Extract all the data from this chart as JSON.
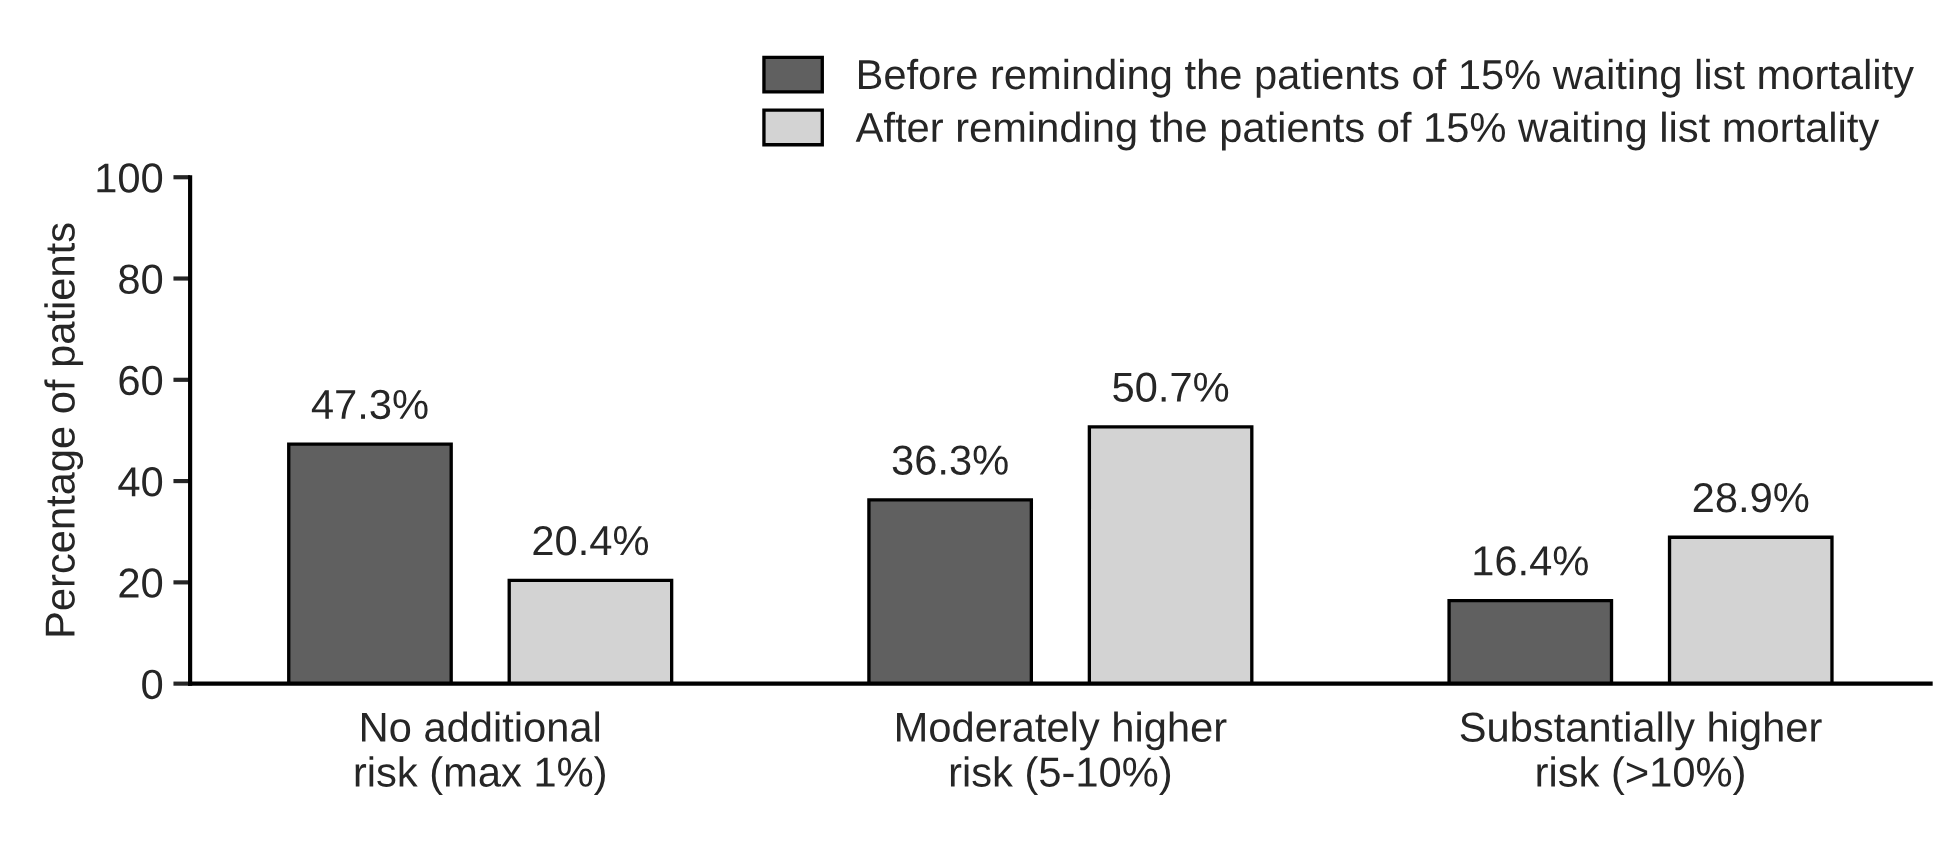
{
  "chart_data": {
    "type": "bar",
    "ylabel": "Percentage of patients",
    "categories": [
      "No additional\nrisk (max 1%)",
      "Moderately higher\nrisk (5-10%)",
      "Substantially higher\nrisk (>10%)"
    ],
    "series": [
      {
        "name": "Before reminding the patients of 15% waiting list mortality",
        "color": "#606060",
        "values": [
          47.3,
          36.3,
          16.4
        ],
        "value_labels": [
          "47.3%",
          "36.3%",
          "16.4%"
        ]
      },
      {
        "name": "After reminding the patients of 15% waiting list mortality",
        "color": "#d3d3d3",
        "values": [
          20.4,
          50.7,
          28.9
        ],
        "value_labels": [
          "20.4%",
          "50.7%",
          "28.9%"
        ]
      }
    ],
    "ylim": [
      0,
      100
    ],
    "yticks": [
      0,
      20,
      40,
      60,
      80,
      100
    ],
    "grid": false,
    "legend": "top right"
  }
}
